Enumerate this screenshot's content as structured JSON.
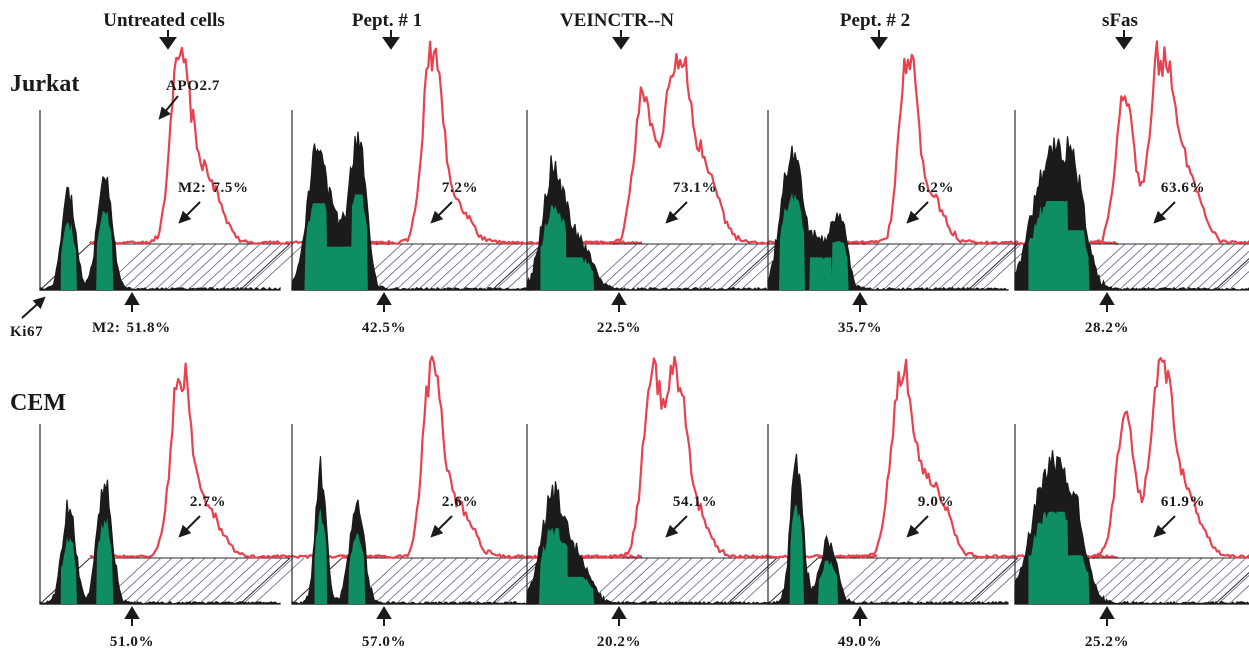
{
  "chart_data": {
    "type": "area",
    "description_of_axes": "none printed",
    "colors": {
      "black_trace": "#1b1b1b",
      "green_fill": "#0f8f61",
      "red_trace": "#e8414f",
      "axis": "#2a2a2a",
      "hatch": "#5c5c8a"
    },
    "columns": [
      "Untreated cells",
      "Pept. # 1",
      "VEINCTR--N",
      "Pept. # 2",
      "sFas"
    ],
    "rows": [
      {
        "name": "Jurkat",
        "panels": [
          {
            "column": "Untreated cells",
            "ki67_m2": "51.8%",
            "apo27_m2": "7.5%",
            "black_peaks": [
              {
                "pos": 0.12,
                "height": 0.62,
                "width": 0.028
              },
              {
                "pos": 0.27,
                "height": 0.78,
                "width": 0.03
              }
            ],
            "red_peaks": [
              {
                "pos": 0.3,
                "height": 1.0,
                "width": 0.03
              },
              {
                "pos": 0.38,
                "height": 0.4,
                "width": 0.05
              }
            ]
          },
          {
            "column": "Pept. # 1",
            "ki67_m2": "42.5%",
            "apo27_m2": "7.2%",
            "black_peaks": [
              {
                "pos": 0.1,
                "height": 0.8,
                "width": 0.04
              },
              {
                "pos": 0.2,
                "height": 0.4,
                "width": 0.06
              },
              {
                "pos": 0.28,
                "height": 0.88,
                "width": 0.03
              }
            ],
            "red_peaks": [
              {
                "pos": 0.3,
                "height": 1.0,
                "width": 0.03
              },
              {
                "pos": 0.37,
                "height": 0.25,
                "width": 0.05
              }
            ]
          },
          {
            "column": "VEINCTR--N",
            "ki67_m2": "22.5%",
            "apo27_m2": "73.1%",
            "black_peaks": [
              {
                "pos": 0.11,
                "height": 0.78,
                "width": 0.045
              },
              {
                "pos": 0.22,
                "height": 0.3,
                "width": 0.05
              }
            ],
            "red_peaks": [
              {
                "pos": 0.22,
                "height": 0.8,
                "width": 0.03
              },
              {
                "pos": 0.33,
                "height": 1.0,
                "width": 0.04
              },
              {
                "pos": 0.42,
                "height": 0.4,
                "width": 0.05
              }
            ]
          },
          {
            "column": "Pept. # 2",
            "ki67_m2": "35.7%",
            "apo27_m2": "6.2%",
            "black_peaks": [
              {
                "pos": 0.1,
                "height": 0.9,
                "width": 0.045
              },
              {
                "pos": 0.22,
                "height": 0.3,
                "width": 0.04
              },
              {
                "pos": 0.3,
                "height": 0.45,
                "width": 0.03
              }
            ],
            "red_peaks": [
              {
                "pos": 0.3,
                "height": 1.0,
                "width": 0.028
              },
              {
                "pos": 0.37,
                "height": 0.25,
                "width": 0.05
              }
            ]
          },
          {
            "column": "sFas",
            "ki67_m2": "28.2%",
            "apo27_m2": "63.6%",
            "black_peaks": [
              {
                "pos": 0.14,
                "height": 0.82,
                "width": 0.07
              },
              {
                "pos": 0.25,
                "height": 0.55,
                "width": 0.05
              }
            ],
            "red_peaks": [
              {
                "pos": 0.2,
                "height": 0.8,
                "width": 0.03
              },
              {
                "pos": 0.32,
                "height": 1.0,
                "width": 0.035
              },
              {
                "pos": 0.4,
                "height": 0.4,
                "width": 0.05
              }
            ]
          }
        ]
      },
      {
        "name": "CEM",
        "panels": [
          {
            "column": "Untreated cells",
            "ki67_m2": "51.0%",
            "apo27_m2": "2.7%",
            "black_peaks": [
              {
                "pos": 0.12,
                "height": 0.62,
                "width": 0.028
              },
              {
                "pos": 0.27,
                "height": 0.8,
                "width": 0.03
              }
            ],
            "red_peaks": [
              {
                "pos": 0.3,
                "height": 1.0,
                "width": 0.03
              },
              {
                "pos": 0.38,
                "height": 0.3,
                "width": 0.05
              }
            ]
          },
          {
            "column": "Pept. # 1",
            "ki67_m2": "57.0%",
            "apo27_m2": "2.6%",
            "black_peaks": [
              {
                "pos": 0.12,
                "height": 0.88,
                "width": 0.022
              },
              {
                "pos": 0.27,
                "height": 0.65,
                "width": 0.03
              }
            ],
            "red_peaks": [
              {
                "pos": 0.3,
                "height": 1.0,
                "width": 0.03
              },
              {
                "pos": 0.38,
                "height": 0.3,
                "width": 0.05
              }
            ]
          },
          {
            "column": "VEINCTR--N",
            "ki67_m2": "20.2%",
            "apo27_m2": "54.1%",
            "black_peaks": [
              {
                "pos": 0.11,
                "height": 0.7,
                "width": 0.05
              },
              {
                "pos": 0.22,
                "height": 0.25,
                "width": 0.05
              }
            ],
            "red_peaks": [
              {
                "pos": 0.25,
                "height": 1.0,
                "width": 0.03
              },
              {
                "pos": 0.33,
                "height": 1.0,
                "width": 0.03
              },
              {
                "pos": 0.4,
                "height": 0.25,
                "width": 0.04
              }
            ]
          },
          {
            "column": "Pept. # 2",
            "ki67_m2": "49.0%",
            "apo27_m2": "9.0%",
            "black_peaks": [
              {
                "pos": 0.12,
                "height": 0.92,
                "width": 0.025
              },
              {
                "pos": 0.25,
                "height": 0.4,
                "width": 0.035
              }
            ],
            "red_peaks": [
              {
                "pos": 0.28,
                "height": 1.0,
                "width": 0.035
              },
              {
                "pos": 0.38,
                "height": 0.4,
                "width": 0.05
              }
            ]
          },
          {
            "column": "sFas",
            "ki67_m2": "25.2%",
            "apo27_m2": "61.9%",
            "black_peaks": [
              {
                "pos": 0.14,
                "height": 0.85,
                "width": 0.07
              },
              {
                "pos": 0.25,
                "height": 0.45,
                "width": 0.05
              }
            ],
            "red_peaks": [
              {
                "pos": 0.2,
                "height": 0.75,
                "width": 0.03
              },
              {
                "pos": 0.32,
                "height": 1.0,
                "width": 0.035
              },
              {
                "pos": 0.4,
                "height": 0.35,
                "width": 0.05
              }
            ]
          }
        ]
      }
    ],
    "annotations": {
      "red_series_label": "APO2.7",
      "black_series_label": "Ki67",
      "m2_prefix": "M2:"
    }
  }
}
